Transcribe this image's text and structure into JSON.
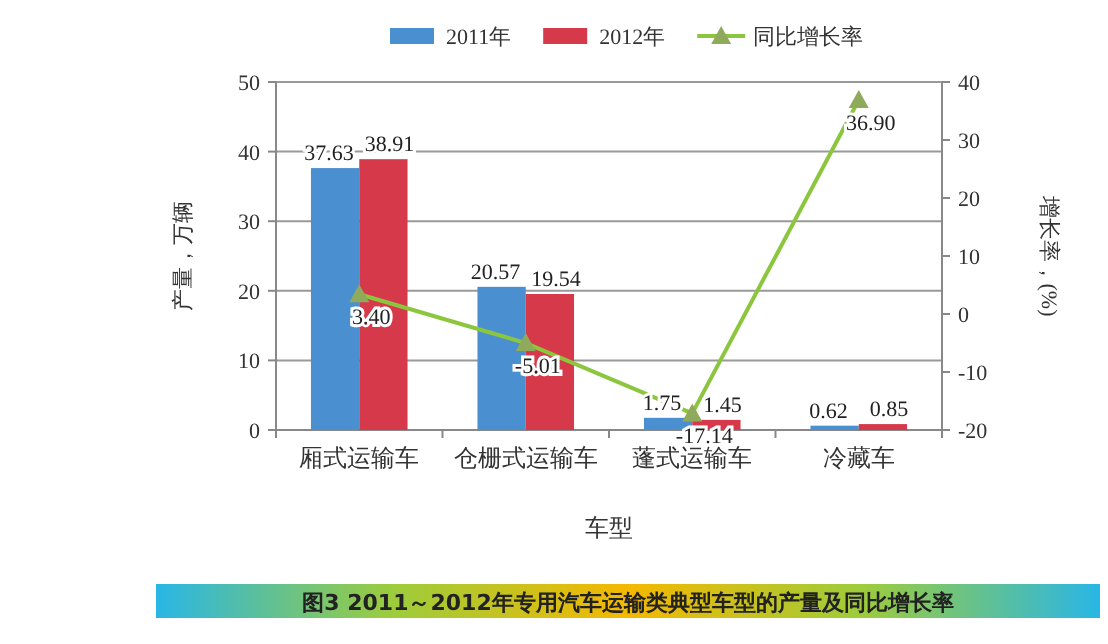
{
  "chart_data": {
    "type": "bar",
    "title": "图3 2011～2012年专用汽车运输类典型车型的产量及同比增长率",
    "xlabel": "车型",
    "ylabel": "产量，万辆",
    "y2label": "增长率，(%)",
    "categories": [
      "厢式运输车",
      "仓栅式运输车",
      "蓬式运输车",
      "冷藏车"
    ],
    "series": [
      {
        "name": "2011年",
        "color": "#4a8fd0",
        "values": [
          37.63,
          20.57,
          1.75,
          0.62
        ],
        "value_labels": [
          "37.63",
          "20.57",
          "1.75",
          "0.62"
        ]
      },
      {
        "name": "2012年",
        "color": "#d63a4a",
        "values": [
          38.91,
          19.54,
          1.45,
          0.85
        ],
        "value_labels": [
          "38.91",
          "19.54",
          "1.45",
          "0.85"
        ]
      },
      {
        "name": "同比增长率",
        "type": "line",
        "axis": "y2",
        "color": "#8cc63f",
        "marker": "triangle",
        "values": [
          3.4,
          -5.01,
          -17.14,
          36.9
        ],
        "value_labels": [
          "3.40",
          "-5.01",
          "-17.14",
          "36.90"
        ]
      }
    ],
    "ylim": [
      0,
      50
    ],
    "yticks": [
      0,
      10,
      20,
      30,
      40,
      50
    ],
    "y2lim": [
      -20,
      40
    ],
    "y2ticks": [
      -20,
      -10,
      0,
      10,
      20,
      30,
      40
    ],
    "grid": "y",
    "legend": "top"
  }
}
